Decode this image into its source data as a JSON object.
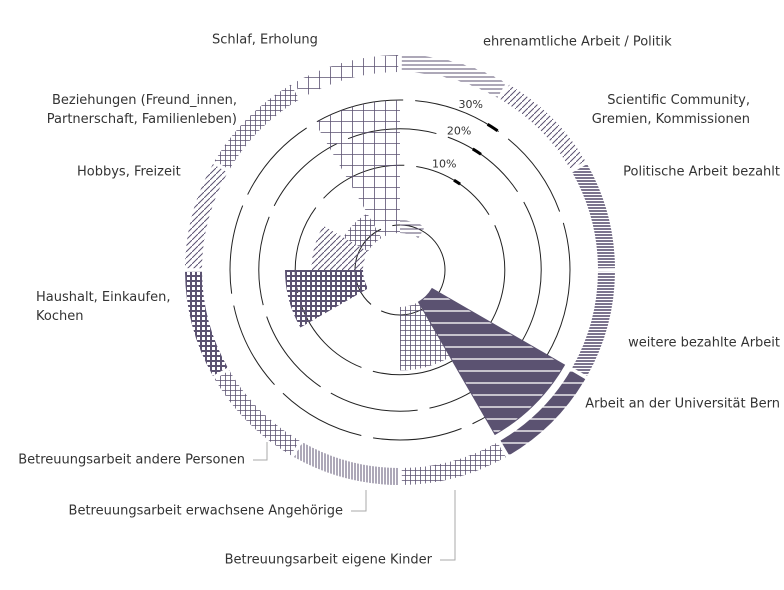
{
  "chart_data": {
    "type": "polar_area",
    "categories": [
      "ehrenamtliche Arbeit / Politik",
      "Scientific Community,\nGremien, Kommissionen",
      "Politische Arbeit bezahlt",
      "weitere bezahlte Arbeit",
      "Arbeit an der Universität Bern",
      "Betreuungsarbeit eigene Kinder",
      "Betreuungsarbeit erwachsene Angehörige",
      "Betreuungsarbeit andere Personen",
      "Haushalt, Einkaufen,\nKochen",
      "Hobbys, Freizeit",
      "Beziehungen (Freund_innen,\nPartnerschaft, Familienleben)",
      "Schlaf, Erholung"
    ],
    "values": [
      0.5,
      0,
      0,
      0,
      38,
      9,
      0,
      0,
      12.5,
      6.5,
      2.5,
      30
    ],
    "rticks": [
      {
        "value": 10,
        "label": "10%"
      },
      {
        "value": 20,
        "label": "20%"
      },
      {
        "value": 30,
        "label": "30%"
      }
    ],
    "color": "#5b5271"
  }
}
